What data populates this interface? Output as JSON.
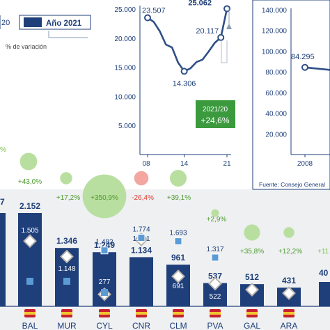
{
  "legend": {
    "prev_label": "20",
    "current_label": "Año 2021",
    "variation_label": "% de variación"
  },
  "colors": {
    "navy": "#1f3f7a",
    "green": "#7ac143",
    "red": "#e03c31",
    "bar_fill": "#1f3f7a",
    "line": "#2f4f86",
    "marker_blue": "#5b9bd5",
    "marker_gray": "#b9b4ad",
    "badge": "#3a9a3d"
  },
  "badge": {
    "period": "2021/20",
    "value": "+24,6%"
  },
  "source": "Fuente: Consejo General",
  "chart_data": [
    {
      "type": "line",
      "x": [
        2008,
        2009,
        2010,
        2011,
        2012,
        2013,
        2014,
        2015,
        2016,
        2017,
        2018,
        2019,
        2020,
        2021
      ],
      "y": [
        23507,
        22800,
        21200,
        18900,
        18400,
        15800,
        14306,
        14800,
        15900,
        16300,
        17700,
        19200,
        20117,
        25062
      ],
      "ylim": [
        0,
        25000
      ],
      "yticks": [
        "25.000",
        "20.000",
        "15.000",
        "10.000",
        "5.000"
      ],
      "xticks": [
        "08",
        "14",
        "21"
      ],
      "annotations": [
        "23.507",
        "25.062",
        "20.117",
        "14.306"
      ]
    },
    {
      "type": "line",
      "x": [
        2008,
        2009,
        2010
      ],
      "y": [
        84295,
        82000,
        78000
      ],
      "ylim": [
        0,
        140000
      ],
      "yticks": [
        "140.000",
        "120.000",
        "100.000",
        "80.000",
        "60.000",
        "40.000",
        "20.000"
      ],
      "xticks": [
        "2008"
      ],
      "annotations": [
        "84.295"
      ]
    },
    {
      "type": "bar",
      "categories": [
        "BAL",
        "MUR",
        "CYL",
        "CNR",
        "CLM",
        "PVA",
        "GAL",
        "ARA"
      ],
      "values": [
        2152,
        1346,
        1249,
        1134,
        961,
        537,
        512,
        431
      ],
      "value_labels": [
        "2.152",
        "1.346",
        "1.249",
        "1.134",
        "961",
        "537",
        "512",
        "431"
      ],
      "prev_labels": [
        "1.505",
        "1.148",
        "277",
        "1.541",
        "691",
        "522",
        "",
        ""
      ],
      "high_labels": [
        "",
        "",
        "1.482",
        "1.774",
        "1.693",
        "1.317",
        "",
        ""
      ],
      "variation": [
        "+43,0%",
        "+17,2%",
        "+350,9%",
        "-26,4%",
        "+39,1%",
        "+2,9%",
        "+35,8%",
        "+12,2%"
      ],
      "variation_values": [
        43.0,
        17.2,
        350.9,
        -26.4,
        39.1,
        2.9,
        35.8,
        12.2
      ],
      "left_bar_label": "7",
      "right_bar_label": "40",
      "right_variation_label": "+11",
      "left_variation_label": "%"
    }
  ]
}
